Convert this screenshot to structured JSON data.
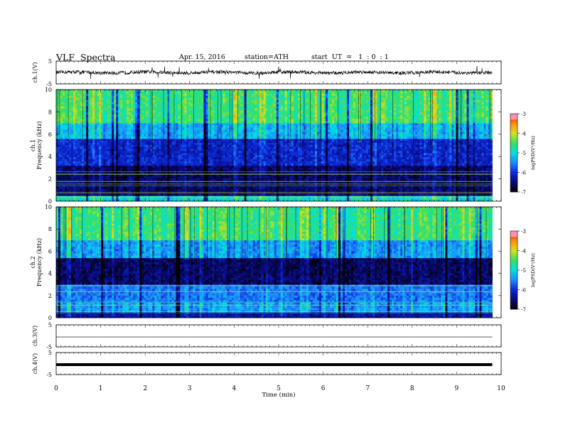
{
  "header": {
    "title": "VLF  Spectra",
    "date": "Apr. 15, 2016",
    "station": "station=ATH",
    "start": "start  UT  =   1  : 0  : 1"
  },
  "colors": {
    "spectrogram_scale": [
      "#000000",
      "#0a0a7a",
      "#0c28d8",
      "#1e8cff",
      "#00e0e0",
      "#38e060",
      "#d8e020",
      "#ff8a10",
      "#d81010",
      "#ff90b0"
    ],
    "trace": "#000000"
  },
  "chart_data": [
    {
      "type": "line",
      "panel": "ch.1 waveform",
      "ylabel": "ch.1(V)",
      "ylim": [
        -5,
        5
      ],
      "yticks": [
        "5",
        "-5"
      ],
      "x_range_min": [
        0,
        9.8
      ],
      "series": [
        {
          "values_approx": "noisy trace centred near 0 V, amplitude about ±1 V with occasional spikes to about ±2 V"
        }
      ]
    },
    {
      "type": "heatmap",
      "panel": "ch.1 spectrogram",
      "ylabel": [
        "ch.1",
        "Frequency  (kHz)"
      ],
      "ylim": [
        0,
        10
      ],
      "yticks": [
        "0",
        "2",
        "4",
        "6",
        "8",
        "10"
      ],
      "x_range_min": [
        0,
        9.8
      ],
      "colorbar": {
        "label": "logPSD(V²/Hz)",
        "range": [
          -7,
          -3
        ],
        "ticks": [
          "-3",
          "-4",
          "-5",
          "-6",
          "-7"
        ]
      },
      "bands": [
        {
          "khz": [
            0,
            0.5
          ],
          "logpsd": -5.0
        },
        {
          "khz": [
            0.5,
            3.2
          ],
          "logpsd": -6.6
        },
        {
          "khz": [
            3.2,
            5.6
          ],
          "logpsd": -6.1
        },
        {
          "khz": [
            5.6,
            7.0
          ],
          "logpsd": -5.3
        },
        {
          "khz": [
            7.0,
            10
          ],
          "logpsd": -4.6
        }
      ]
    },
    {
      "type": "heatmap",
      "panel": "ch.2 spectrogram",
      "ylabel": [
        "ch.2",
        "Frequency  (kHz)"
      ],
      "ylim": [
        0,
        10
      ],
      "yticks": [
        "0",
        "2",
        "4",
        "6",
        "8",
        "10"
      ],
      "x_range_min": [
        0,
        9.8
      ],
      "colorbar": {
        "label": "logPSD(V²/Hz)",
        "range": [
          -7,
          -3
        ],
        "ticks": [
          "-3",
          "-4",
          "-5",
          "-6",
          "-7"
        ]
      },
      "bands": [
        {
          "khz": [
            0,
            0.5
          ],
          "logpsd": -6.3
        },
        {
          "khz": [
            0.5,
            1.4
          ],
          "logpsd": -5.4
        },
        {
          "khz": [
            1.4,
            3.0
          ],
          "logpsd": -5.6
        },
        {
          "khz": [
            3.0,
            5.4
          ],
          "logpsd": -6.6
        },
        {
          "khz": [
            5.4,
            7.0
          ],
          "logpsd": -5.4
        },
        {
          "khz": [
            7.0,
            10
          ],
          "logpsd": -4.6
        }
      ]
    },
    {
      "type": "line",
      "panel": "ch.3 waveform",
      "ylabel": "ch.3(V)",
      "ylim": [
        -5,
        5
      ],
      "yticks": [
        "5",
        "-5"
      ],
      "x_range_min": [
        0,
        9.8
      ],
      "series": [
        {
          "values_approx": "flat line near -0.5 V"
        }
      ]
    },
    {
      "type": "line",
      "panel": "ch.4 waveform",
      "ylabel": "ch.4(V)",
      "ylim": [
        -5,
        5
      ],
      "yticks": [
        "5",
        "-5"
      ],
      "x_range_min": [
        0,
        9.8
      ],
      "series": [
        {
          "values_approx": "thick flat line near -0.5 V"
        }
      ]
    }
  ],
  "x_axis": {
    "label": "Time  (min)",
    "range": [
      0,
      10
    ],
    "ticks": [
      "0",
      "1",
      "2",
      "3",
      "4",
      "5",
      "6",
      "7",
      "8",
      "9",
      "10"
    ]
  }
}
